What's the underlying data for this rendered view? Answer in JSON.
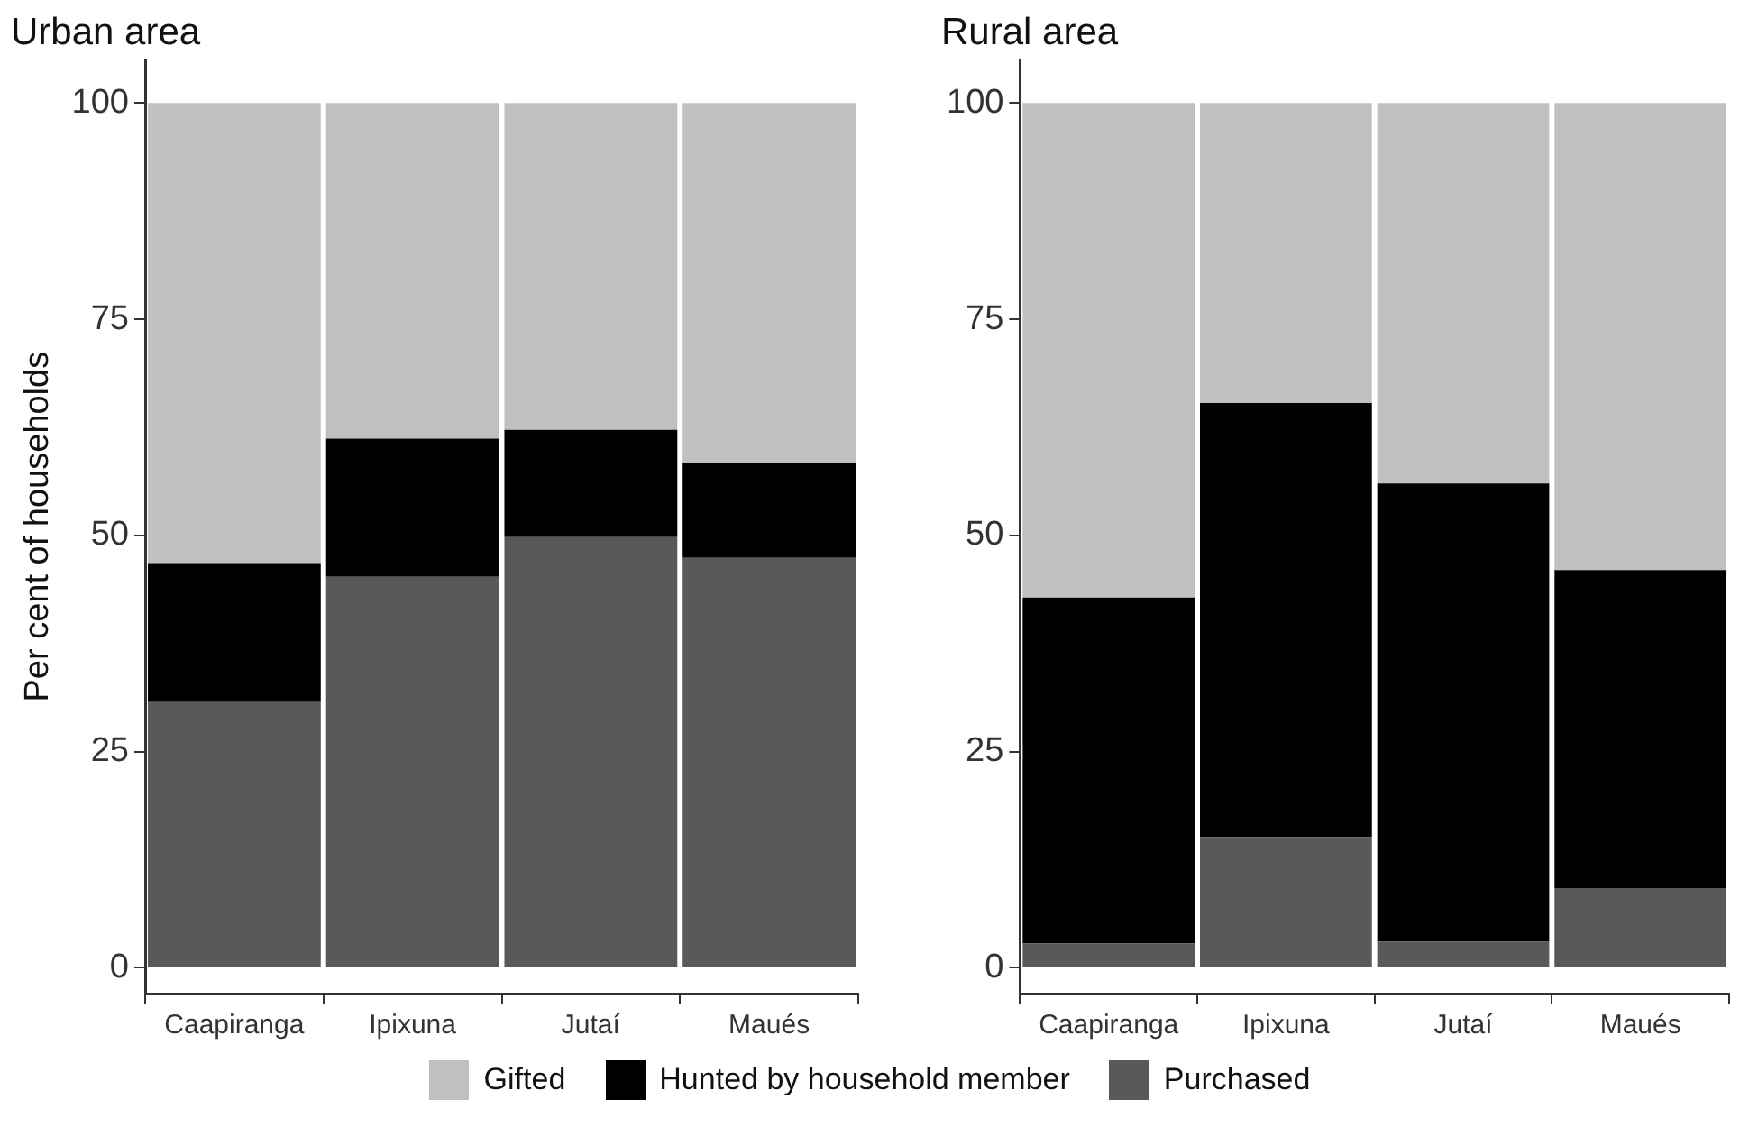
{
  "chart_data": [
    {
      "type": "bar",
      "title": "Urban area",
      "ylabel": "Per cent of households",
      "categories": [
        "Caapiranga",
        "Ipixuna",
        "Jutaí",
        "Maués"
      ],
      "stacked": true,
      "ylim": [
        -3,
        105
      ],
      "yticks": [
        0,
        25,
        50,
        75,
        100
      ],
      "grid": false,
      "legend": "bottom",
      "series": [
        {
          "name": "Purchased",
          "color": "#595959",
          "values": [
            30.7,
            45.2,
            49.8,
            47.4
          ]
        },
        {
          "name": "Hunted by household member",
          "color": "#000000",
          "values": [
            16.1,
            16.0,
            12.4,
            11.0
          ]
        },
        {
          "name": "Gifted",
          "color": "#c0c0c0",
          "values": [
            53.2,
            38.8,
            37.8,
            41.6
          ]
        }
      ]
    },
    {
      "type": "bar",
      "title": "Rural area",
      "categories": [
        "Caapiranga",
        "Ipixuna",
        "Jutaí",
        "Maués"
      ],
      "stacked": true,
      "ylim": [
        -3,
        105
      ],
      "yticks": [
        0,
        25,
        50,
        75,
        100
      ],
      "grid": false,
      "series": [
        {
          "color": "#595959",
          "values": [
            2.8,
            15.1,
            3.0,
            9.2
          ]
        },
        {
          "color": "#000000",
          "values": [
            40.0,
            50.2,
            53.0,
            36.8
          ]
        },
        {
          "color": "#c0c0c0",
          "values": [
            57.2,
            34.7,
            44.0,
            54.0
          ]
        }
      ]
    }
  ]
}
